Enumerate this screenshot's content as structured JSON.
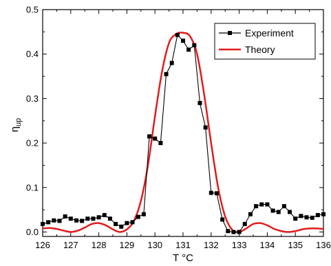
{
  "chart_data": {
    "type": "line",
    "title": "",
    "xlabel": "T °C",
    "ylabel": "ηup",
    "ylabel_main": "η",
    "ylabel_sub": "up",
    "xlim": [
      126,
      136
    ],
    "ylim": [
      -0.01,
      0.5
    ],
    "x_ticks": [
      126,
      127,
      128,
      129,
      130,
      131,
      132,
      133,
      134,
      135,
      136
    ],
    "y_ticks": [
      0.0,
      0.1,
      0.2,
      0.3,
      0.4,
      0.5
    ],
    "y_tick_labels": [
      "0.0",
      "0.1",
      "0.2",
      "0.3",
      "0.4",
      "0.5"
    ],
    "grid": false,
    "legend_position": "top-right",
    "series": [
      {
        "name": "Experiment",
        "color": "#000000",
        "marker": "square",
        "x": [
          126.0,
          126.2,
          126.4,
          126.6,
          126.8,
          127.0,
          127.2,
          127.4,
          127.6,
          127.8,
          128.0,
          128.2,
          128.4,
          128.6,
          128.8,
          129.0,
          129.2,
          129.4,
          129.6,
          129.8,
          130.0,
          130.2,
          130.4,
          130.6,
          130.8,
          131.0,
          131.2,
          131.4,
          131.6,
          131.8,
          132.0,
          132.2,
          132.4,
          132.6,
          132.8,
          133.0,
          133.2,
          133.4,
          133.6,
          133.8,
          134.0,
          134.2,
          134.4,
          134.6,
          134.8,
          135.0,
          135.2,
          135.4,
          135.6,
          135.8,
          136.0
        ],
        "values": [
          0.018,
          0.022,
          0.026,
          0.025,
          0.035,
          0.03,
          0.026,
          0.025,
          0.03,
          0.03,
          0.033,
          0.038,
          0.03,
          0.018,
          0.012,
          0.02,
          0.022,
          0.034,
          0.04,
          0.215,
          0.21,
          0.2,
          0.355,
          0.38,
          0.443,
          0.43,
          0.41,
          0.42,
          0.29,
          0.235,
          0.088,
          0.087,
          0.028,
          0.002,
          0.0,
          0.0,
          0.018,
          0.04,
          0.058,
          0.062,
          0.062,
          0.048,
          0.045,
          0.058,
          0.045,
          0.03,
          0.036,
          0.033,
          0.032,
          0.038,
          0.04
        ]
      },
      {
        "name": "Theory",
        "color": "#e41a1c",
        "marker": "none",
        "x": [
          126.0,
          126.25,
          126.5,
          126.75,
          127.0,
          127.25,
          127.5,
          127.75,
          128.0,
          128.25,
          128.5,
          128.75,
          129.0,
          129.25,
          129.5,
          129.75,
          130.0,
          130.25,
          130.5,
          130.75,
          131.0,
          131.25,
          131.5,
          131.75,
          132.0,
          132.25,
          132.5,
          132.75,
          133.0,
          133.25,
          133.5,
          133.75,
          134.0,
          134.25,
          134.5,
          134.75,
          135.0,
          135.25,
          135.5,
          135.75,
          136.0
        ],
        "values": [
          0.008,
          0.009,
          0.007,
          0.003,
          0.0,
          0.003,
          0.01,
          0.018,
          0.02,
          0.015,
          0.006,
          0.0,
          0.006,
          0.025,
          0.07,
          0.15,
          0.26,
          0.36,
          0.425,
          0.445,
          0.448,
          0.44,
          0.4,
          0.31,
          0.2,
          0.1,
          0.035,
          0.005,
          0.0,
          0.008,
          0.018,
          0.02,
          0.015,
          0.007,
          0.002,
          0.0,
          0.002,
          0.006,
          0.008,
          0.008,
          0.007
        ]
      }
    ]
  }
}
